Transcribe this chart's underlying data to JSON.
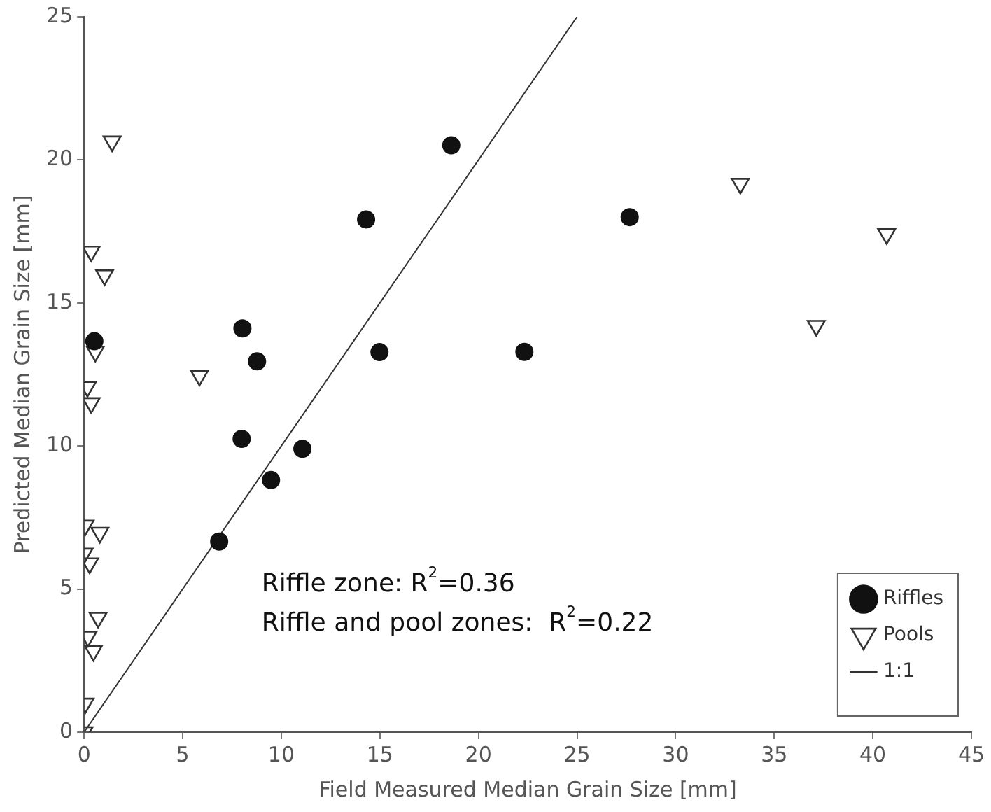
{
  "chart_data": {
    "type": "scatter",
    "xlabel": "Field Measured Median Grain Size [mm]",
    "ylabel": "Predicted Median Grain Size [mm]",
    "xlim": [
      0,
      45
    ],
    "xticks": [
      0,
      5,
      10,
      15,
      20,
      25,
      30,
      35,
      40,
      45
    ],
    "ylim": [
      0,
      25
    ],
    "yticks": [
      0,
      5,
      10,
      15,
      20,
      25
    ],
    "grid": false,
    "legend": "bottom right",
    "annotations": [
      "Riffle zone: R$^{2}$=0.36",
      "Riffle and pool zones:  R$^{2}$=0.22"
    ],
    "series": [
      {
        "name": "Riffles",
        "marker": "circle",
        "color": "#111111",
        "x": [
          0.52,
          8.03,
          8.77,
          7.99,
          11.07,
          9.48,
          6.85,
          18.62,
          14.3,
          14.98,
          22.33,
          27.67
        ],
        "values": [
          13.66,
          14.11,
          12.96,
          10.25,
          9.9,
          8.81,
          6.66,
          20.51,
          17.92,
          13.28,
          13.29,
          18.0
        ]
      },
      {
        "name": "Pools",
        "marker": "triangle",
        "color": "#333333",
        "x": [
          1.42,
          0.36,
          1.04,
          0.57,
          0.17,
          0.36,
          0.05,
          0.8,
          0,
          0.28,
          0.71,
          0.2,
          0.47,
          0.05,
          0,
          5.85,
          33.28,
          40.7,
          37.13
        ],
        "values": [
          20.65,
          16.8,
          15.97,
          13.3,
          12.07,
          11.5,
          7.22,
          6.97,
          6.24,
          5.9,
          4.0,
          3.34,
          2.84,
          1.0,
          0,
          12.46,
          19.17,
          17.41,
          14.2
        ]
      },
      {
        "name": "1:1",
        "type": "line",
        "marker": "none",
        "line_style": "solid",
        "color": "#333333",
        "x": [
          0,
          25
        ],
        "values": [
          0,
          25
        ]
      }
    ]
  }
}
